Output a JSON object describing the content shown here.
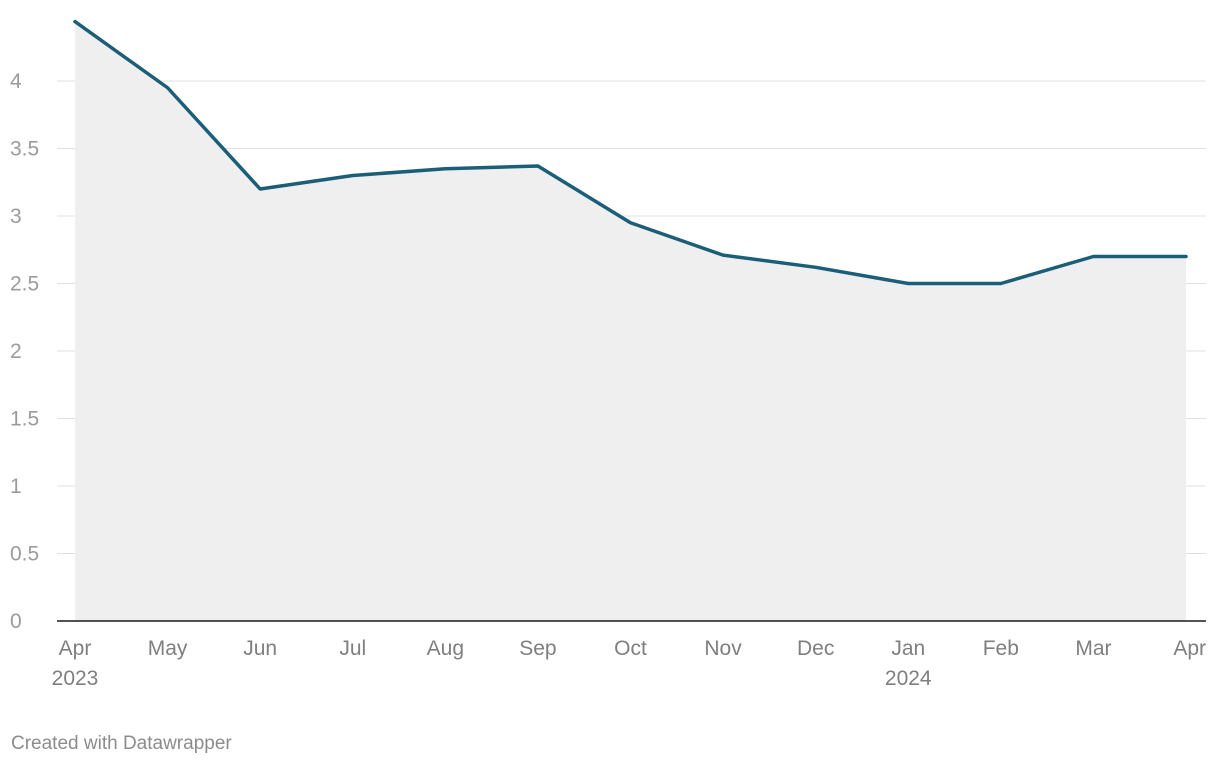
{
  "chart_data": {
    "type": "area",
    "title": "",
    "xlabel": "",
    "ylabel": "",
    "categories": [
      "Apr 2023",
      "May 2023",
      "Jun 2023",
      "Jul 2023",
      "Aug 2023",
      "Sep 2023",
      "Oct 2023",
      "Nov 2023",
      "Dec 2023",
      "Jan 2024",
      "Feb 2024",
      "Mar 2024",
      "Apr 2024"
    ],
    "x_tick_labels": [
      {
        "month": "Apr",
        "year": "2023"
      },
      {
        "month": "May",
        "year": ""
      },
      {
        "month": "Jun",
        "year": ""
      },
      {
        "month": "Jul",
        "year": ""
      },
      {
        "month": "Aug",
        "year": ""
      },
      {
        "month": "Sep",
        "year": ""
      },
      {
        "month": "Oct",
        "year": ""
      },
      {
        "month": "Nov",
        "year": ""
      },
      {
        "month": "Dec",
        "year": ""
      },
      {
        "month": "Jan",
        "year": "2024"
      },
      {
        "month": "Feb",
        "year": ""
      },
      {
        "month": "Mar",
        "year": ""
      },
      {
        "month": "Apr",
        "year": ""
      }
    ],
    "values": [
      4.44,
      3.95,
      3.2,
      3.3,
      3.35,
      3.37,
      2.95,
      2.71,
      2.62,
      2.5,
      2.5,
      2.7,
      2.7
    ],
    "ylim": [
      0,
      4.5
    ],
    "y_ticks": [
      "0",
      "0.5",
      "1",
      "1.5",
      "2",
      "2.5",
      "3",
      "3.5",
      "4"
    ],
    "grid": true,
    "legend": "none",
    "colors": {
      "line": "#1b5e78",
      "area": "#efefef"
    }
  },
  "footer": {
    "credit": "Created with Datawrapper"
  }
}
